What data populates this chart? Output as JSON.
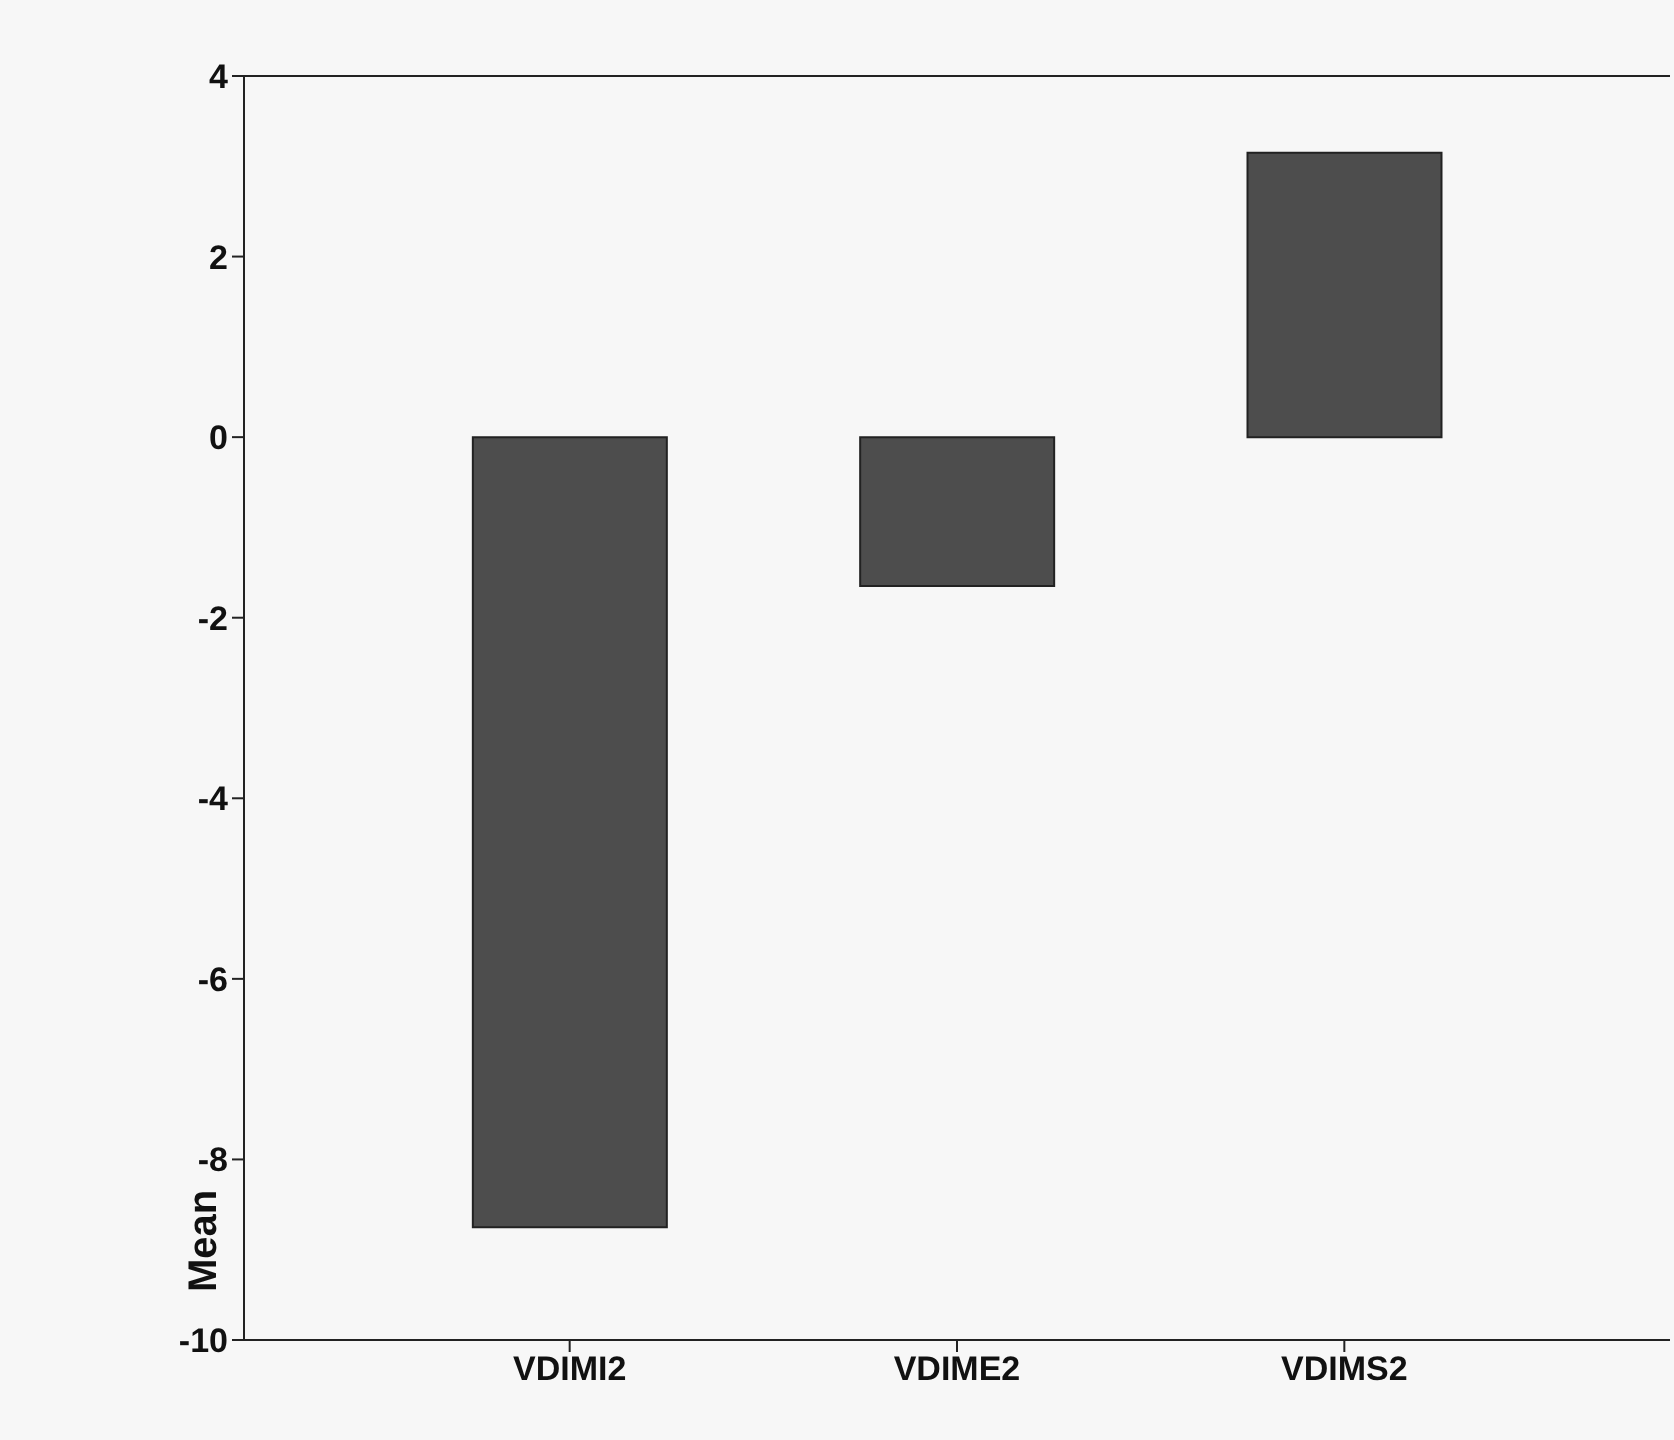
{
  "chart_data": {
    "type": "bar",
    "ylabel": "Mean",
    "categories": [
      "VDIMI2",
      "VDIME2",
      "VDIMS2"
    ],
    "values": [
      -8.75,
      -1.65,
      3.15
    ],
    "color": "#4d4d4d",
    "ylim": [
      -10,
      4
    ],
    "yticks": [
      -10,
      -8,
      -6,
      -4,
      -2,
      0,
      2,
      4
    ],
    "grid": false,
    "legend": false
  }
}
